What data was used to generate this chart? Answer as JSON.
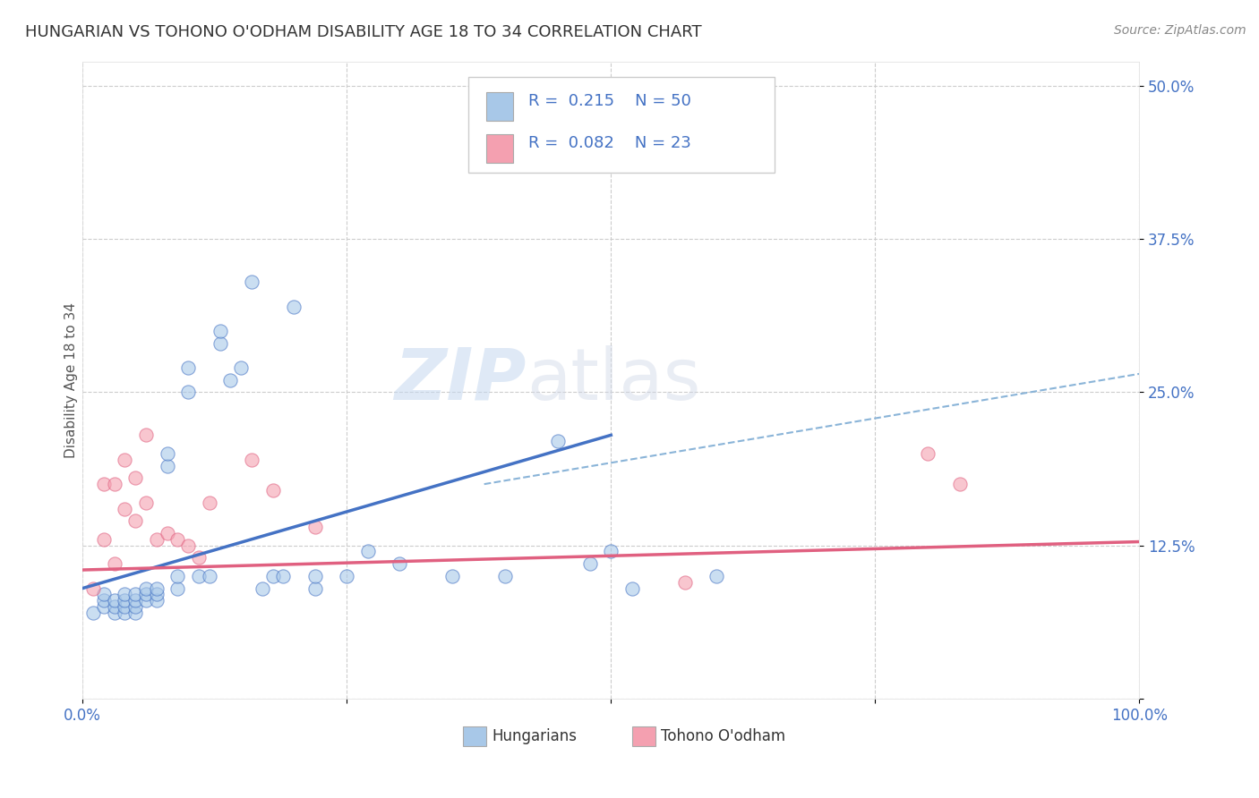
{
  "title": "HUNGARIAN VS TOHONO O'ODHAM DISABILITY AGE 18 TO 34 CORRELATION CHART",
  "source_text": "Source: ZipAtlas.com",
  "ylabel": "Disability Age 18 to 34",
  "xlim": [
    0.0,
    1.0
  ],
  "ylim": [
    0.0,
    0.52
  ],
  "xticks": [
    0.0,
    0.25,
    0.5,
    0.75,
    1.0
  ],
  "xtick_labels": [
    "0.0%",
    "",
    "",
    "",
    "100.0%"
  ],
  "ytick_labels": [
    "",
    "12.5%",
    "25.0%",
    "37.5%",
    "50.0%"
  ],
  "yticks": [
    0.0,
    0.125,
    0.25,
    0.375,
    0.5
  ],
  "blue_color": "#a8c8e8",
  "pink_color": "#f4a0b0",
  "blue_line_color": "#4472c4",
  "pink_line_color": "#e06080",
  "dashed_line_color": "#8ab4d8",
  "background_color": "#ffffff",
  "grid_color": "#cccccc",
  "legend_text_color": "#4472c4",
  "hungarian_x": [
    0.01,
    0.02,
    0.02,
    0.02,
    0.03,
    0.03,
    0.03,
    0.04,
    0.04,
    0.04,
    0.04,
    0.05,
    0.05,
    0.05,
    0.05,
    0.06,
    0.06,
    0.06,
    0.07,
    0.07,
    0.07,
    0.08,
    0.08,
    0.09,
    0.09,
    0.1,
    0.1,
    0.11,
    0.12,
    0.13,
    0.13,
    0.14,
    0.15,
    0.16,
    0.17,
    0.18,
    0.19,
    0.2,
    0.22,
    0.22,
    0.25,
    0.27,
    0.3,
    0.35,
    0.4,
    0.45,
    0.48,
    0.5,
    0.52,
    0.6
  ],
  "hungarian_y": [
    0.07,
    0.075,
    0.08,
    0.085,
    0.07,
    0.075,
    0.08,
    0.07,
    0.075,
    0.08,
    0.085,
    0.07,
    0.075,
    0.08,
    0.085,
    0.08,
    0.085,
    0.09,
    0.08,
    0.085,
    0.09,
    0.19,
    0.2,
    0.09,
    0.1,
    0.25,
    0.27,
    0.1,
    0.1,
    0.29,
    0.3,
    0.26,
    0.27,
    0.34,
    0.09,
    0.1,
    0.1,
    0.32,
    0.09,
    0.1,
    0.1,
    0.12,
    0.11,
    0.1,
    0.1,
    0.21,
    0.11,
    0.12,
    0.09,
    0.1
  ],
  "tohono_x": [
    0.01,
    0.02,
    0.02,
    0.03,
    0.03,
    0.04,
    0.04,
    0.05,
    0.05,
    0.06,
    0.06,
    0.07,
    0.08,
    0.09,
    0.1,
    0.11,
    0.12,
    0.16,
    0.18,
    0.22,
    0.57,
    0.8,
    0.83
  ],
  "tohono_y": [
    0.09,
    0.13,
    0.175,
    0.11,
    0.175,
    0.155,
    0.195,
    0.145,
    0.18,
    0.16,
    0.215,
    0.13,
    0.135,
    0.13,
    0.125,
    0.115,
    0.16,
    0.195,
    0.17,
    0.14,
    0.095,
    0.2,
    0.175
  ],
  "watermark_zip": "ZIP",
  "watermark_atlas": "atlas",
  "title_fontsize": 13,
  "axis_label_fontsize": 11,
  "tick_fontsize": 12,
  "source_fontsize": 10
}
